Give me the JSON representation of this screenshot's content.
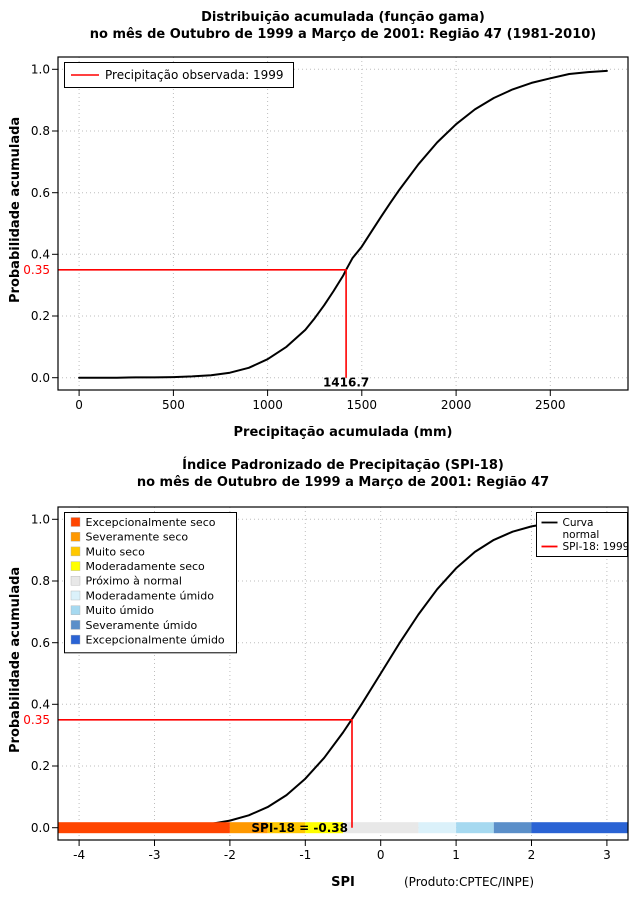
{
  "figure": {
    "bg": "#FFFFFF",
    "footer": "(Produto:CPTEC/INPE)"
  },
  "chart_data": [
    {
      "type": "line",
      "name": "cumulative-gamma-distribution",
      "title": "Distribuição acumulada (função gama)",
      "subtitle": "no mês de Outubro de 1999 a Março de 2001: Região 47 (1981-2010)",
      "xlabel": "Precipitação acumulada (mm)",
      "ylabel": "Probabilidade acumulada",
      "xlim": [
        0,
        2800
      ],
      "ylim": [
        0,
        1
      ],
      "xticks": [
        0,
        500,
        1000,
        1500,
        2000,
        2500
      ],
      "yticks": [
        0,
        0.2,
        0.4,
        0.6,
        0.8,
        1
      ],
      "grid": "dotted",
      "series": [
        {
          "name": "Distribuição acumulada (função gama)",
          "color": "#000000",
          "x": [
            0,
            100,
            200,
            300,
            400,
            500,
            600,
            700,
            800,
            900,
            1000,
            1100,
            1200,
            1250,
            1300,
            1350,
            1400,
            1416.7,
            1450,
            1500,
            1550,
            1600,
            1650,
            1700,
            1800,
            1900,
            2000,
            2100,
            2200,
            2300,
            2400,
            2500,
            2600,
            2700,
            2800
          ],
          "y": [
            0,
            0,
            0,
            0.001,
            0.001,
            0.002,
            0.004,
            0.008,
            0.016,
            0.032,
            0.06,
            0.1,
            0.155,
            0.193,
            0.235,
            0.281,
            0.33,
            0.35,
            0.387,
            0.425,
            0.473,
            0.52,
            0.566,
            0.61,
            0.692,
            0.763,
            0.822,
            0.87,
            0.907,
            0.935,
            0.956,
            0.971,
            0.985,
            0.991,
            0.995
          ]
        }
      ],
      "annotation": {
        "color": "#FF0000",
        "x": 1416.7,
        "p": 0.35,
        "x_label": "1416.7",
        "p_label": "0.35"
      },
      "legend": {
        "position": "topleft",
        "items": [
          {
            "type": "line",
            "color": "#FF0000",
            "label": "Precipitação observada: 1999"
          }
        ]
      }
    },
    {
      "type": "line",
      "name": "spi-18-standardized-precipitation-index",
      "title": "Índice Padronizado de Precipitação (SPI-18)",
      "subtitle": "no mês de Outubro de 1999 a Março de 2001: Região 47",
      "xlabel": "SPI",
      "ylabel": "Probabilidade acumulada",
      "xlim": [
        -4,
        3
      ],
      "ylim": [
        0,
        1
      ],
      "xticks": [
        -4,
        -3,
        -2,
        -1,
        0,
        1,
        2,
        3
      ],
      "yticks": [
        0,
        0.2,
        0.4,
        0.6,
        0.8,
        1
      ],
      "grid": "dotted",
      "series": [
        {
          "name": "Curva normal",
          "color": "#000000",
          "x": [
            -4,
            -3.75,
            -3.5,
            -3.25,
            -3,
            -2.75,
            -2.5,
            -2.25,
            -2,
            -1.75,
            -1.5,
            -1.25,
            -1,
            -0.75,
            -0.5,
            -0.38,
            -0.25,
            0,
            0.25,
            0.5,
            0.75,
            1,
            1.25,
            1.5,
            1.75,
            2,
            2.25,
            2.5,
            2.75,
            3
          ],
          "y": [
            0,
            0.0001,
            0.0002,
            0.0006,
            0.0013,
            0.003,
            0.0062,
            0.0122,
            0.0228,
            0.0401,
            0.0668,
            0.1056,
            0.1587,
            0.2266,
            0.3085,
            0.352,
            0.4013,
            0.5,
            0.5987,
            0.6915,
            0.7734,
            0.8413,
            0.8944,
            0.9332,
            0.9599,
            0.9772,
            0.9878,
            0.9938,
            0.997,
            0.9987
          ]
        }
      ],
      "annotation": {
        "color": "#FF0000",
        "x": -0.38,
        "p": 0.35,
        "p_label": "0.35",
        "bar_label": "SPI-18 = -0.38"
      },
      "legend": {
        "position": "topleft",
        "items": [
          {
            "type": "swatch",
            "color": "#FF4500",
            "label": "Excepcionalmente seco"
          },
          {
            "type": "swatch",
            "color": "#FF9800",
            "label": "Severamente seco"
          },
          {
            "type": "swatch",
            "color": "#FFC800",
            "label": "Muito seco"
          },
          {
            "type": "swatch",
            "color": "#FFFF00",
            "label": "Moderadamente seco"
          },
          {
            "type": "swatch",
            "color": "#E8E8E8",
            "label": "Próximo à normal"
          },
          {
            "type": "swatch",
            "color": "#DBF1FA",
            "label": "Moderadamente úmido"
          },
          {
            "type": "swatch",
            "color": "#A6D9F0",
            "label": "Muito úmido"
          },
          {
            "type": "swatch",
            "color": "#5B8FC9",
            "label": "Severamente úmido"
          },
          {
            "type": "swatch",
            "color": "#2A63D4",
            "label": "Excepcionalmente úmido"
          }
        ]
      },
      "legend2": {
        "position": "topright",
        "items": [
          {
            "type": "line",
            "color": "#000000",
            "label": "Curva normal",
            "label_lines": [
              "Curva",
              "normal"
            ]
          },
          {
            "type": "line",
            "color": "#FF0000",
            "label": "SPI-18: 1999"
          }
        ]
      },
      "colorbar": {
        "position_p": 0,
        "segments": [
          {
            "from": -4.3,
            "to": -2,
            "color": "#FF4500",
            "label": "Excepcionalmente seco"
          },
          {
            "from": -2,
            "to": -1.5,
            "color": "#FF9800",
            "label": "Severamente seco"
          },
          {
            "from": -1.5,
            "to": -1,
            "color": "#FFC800",
            "label": "Muito seco"
          },
          {
            "from": -1,
            "to": -0.5,
            "color": "#FFFF00",
            "label": "Moderadamente seco"
          },
          {
            "from": -0.5,
            "to": 0.5,
            "color": "#E8E8E8",
            "label": "Próximo à normal"
          },
          {
            "from": 0.5,
            "to": 1,
            "color": "#DBF1FA",
            "label": "Moderadamente úmido"
          },
          {
            "from": 1,
            "to": 1.5,
            "color": "#A6D9F0",
            "label": "Muito úmido"
          },
          {
            "from": 1.5,
            "to": 2,
            "color": "#5B8FC9",
            "label": "Severamente úmido"
          },
          {
            "from": 2,
            "to": 3.3,
            "color": "#2A63D4",
            "label": "Excepcionalmente úmido"
          }
        ]
      }
    }
  ]
}
